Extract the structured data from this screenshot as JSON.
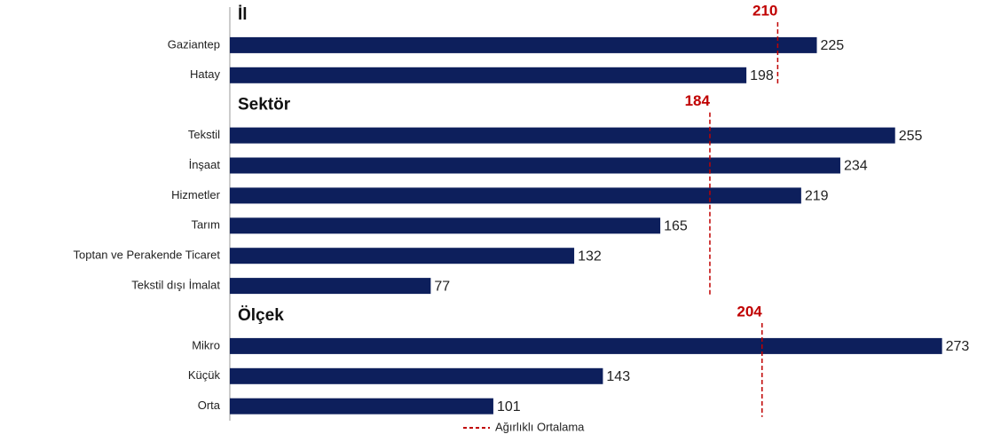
{
  "chart_data": {
    "type": "bar",
    "color": "#0d1f5c",
    "average_color": "#c00000",
    "legend": "Ağırlıklı Ortalama",
    "groups": [
      {
        "title": "İl",
        "average": 210,
        "categories": [
          "Gaziantep",
          "Hatay"
        ],
        "values": [
          225,
          198
        ]
      },
      {
        "title": "Sektör",
        "average": 184,
        "categories": [
          "Tekstil",
          "İnşaat",
          "Hizmetler",
          "Tarım",
          "Toptan ve Perakende Ticaret",
          "Tekstil dışı İmalat"
        ],
        "values": [
          255,
          234,
          219,
          165,
          132,
          77
        ]
      },
      {
        "title": "Ölçek",
        "average": 204,
        "categories": [
          "Mikro",
          "Küçük",
          "Orta"
        ],
        "values": [
          273,
          143,
          101
        ]
      }
    ]
  }
}
